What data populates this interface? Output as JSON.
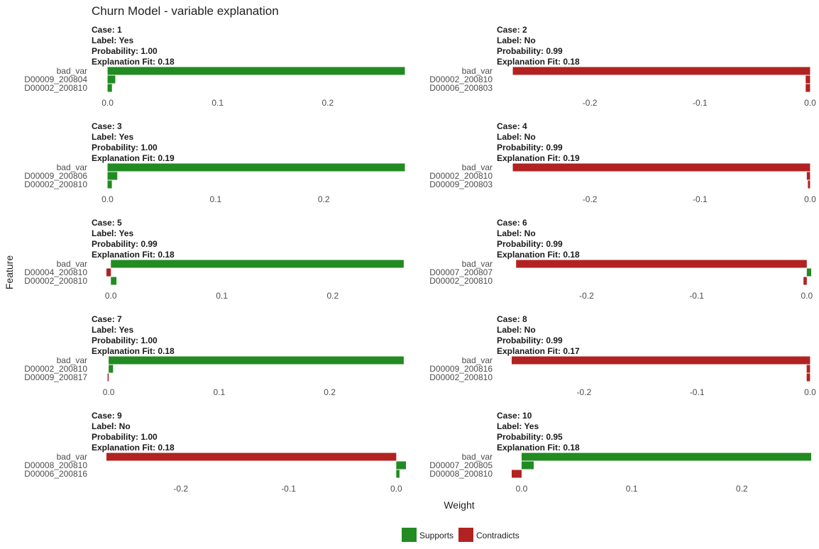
{
  "title": "Churn Model - variable explanation",
  "colors": {
    "supports": "#228b22",
    "contradicts": "#b22222"
  },
  "chart_data": {
    "type": "bar",
    "orientation": "horizontal",
    "title": "Churn Model - variable explanation",
    "xlabel": "Weight",
    "ylabel": "Feature",
    "grid": false,
    "legend": {
      "placement": "bottom",
      "entries": [
        {
          "name": "Supports",
          "color": "#228b22"
        },
        {
          "name": "Contradicts",
          "color": "#b22222"
        }
      ]
    },
    "panels": [
      {
        "case": "1",
        "label": "Yes",
        "probability": "1.00",
        "fit": "0.18",
        "xlim": [
          -0.001,
          0.271
        ],
        "ticks": [
          0.0,
          0.1,
          0.2
        ],
        "tick_labels": [
          "0.0",
          "0.1",
          "0.2"
        ],
        "features": [
          {
            "name": "bad_var",
            "weight": 0.27
          },
          {
            "name": "D00009_200804",
            "weight": 0.007
          },
          {
            "name": "D00002_200810",
            "weight": 0.004
          }
        ]
      },
      {
        "case": "2",
        "label": "No",
        "probability": "0.99",
        "fit": "0.18",
        "xlim": [
          -0.271,
          0.001
        ],
        "ticks": [
          -0.2,
          -0.1,
          0.0
        ],
        "tick_labels": [
          "-0.2",
          "-0.1",
          "0.0"
        ],
        "features": [
          {
            "name": "bad_var",
            "weight": -0.27
          },
          {
            "name": "D00002_200810",
            "weight": -0.004
          },
          {
            "name": "D00006_200803",
            "weight": -0.004
          }
        ]
      },
      {
        "case": "3",
        "label": "Yes",
        "probability": "1.00",
        "fit": "0.19",
        "xlim": [
          -0.001,
          0.276
        ],
        "ticks": [
          0.0,
          0.1,
          0.2
        ],
        "tick_labels": [
          "0.0",
          "0.1",
          "0.2"
        ],
        "features": [
          {
            "name": "bad_var",
            "weight": 0.275
          },
          {
            "name": "D00009_200806",
            "weight": 0.009
          },
          {
            "name": "D00002_200810",
            "weight": 0.004
          }
        ]
      },
      {
        "case": "4",
        "label": "No",
        "probability": "0.99",
        "fit": "0.19",
        "xlim": [
          -0.271,
          0.001
        ],
        "ticks": [
          -0.2,
          -0.1,
          0.0
        ],
        "tick_labels": [
          "-0.2",
          "-0.1",
          "0.0"
        ],
        "features": [
          {
            "name": "bad_var",
            "weight": -0.27
          },
          {
            "name": "D00002_200810",
            "weight": -0.003
          },
          {
            "name": "D00009_200803",
            "weight": -0.002
          }
        ]
      },
      {
        "case": "5",
        "label": "Yes",
        "probability": "0.99",
        "fit": "0.18",
        "xlim": [
          -0.004,
          0.266
        ],
        "ticks": [
          0.0,
          0.1,
          0.2
        ],
        "tick_labels": [
          "0.0",
          "0.1",
          "0.2"
        ],
        "features": [
          {
            "name": "bad_var",
            "weight": 0.264
          },
          {
            "name": "D00004_200810",
            "weight": -0.004
          },
          {
            "name": "D00002_200810",
            "weight": 0.005
          }
        ]
      },
      {
        "case": "6",
        "label": "No",
        "probability": "0.99",
        "fit": "0.18",
        "xlim": [
          -0.268,
          0.004
        ],
        "ticks": [
          -0.2,
          -0.1,
          0.0
        ],
        "tick_labels": [
          "-0.2",
          "-0.1",
          "0.0"
        ],
        "features": [
          {
            "name": "bad_var",
            "weight": -0.264
          },
          {
            "name": "D00007_200807",
            "weight": 0.004
          },
          {
            "name": "D00002_200810",
            "weight": -0.003
          }
        ]
      },
      {
        "case": "7",
        "label": "Yes",
        "probability": "1.00",
        "fit": "0.18",
        "xlim": [
          -0.002,
          0.269
        ],
        "ticks": [
          0.0,
          0.1,
          0.2
        ],
        "tick_labels": [
          "0.0",
          "0.1",
          "0.2"
        ],
        "features": [
          {
            "name": "bad_var",
            "weight": 0.267
          },
          {
            "name": "D00002_200810",
            "weight": 0.004
          },
          {
            "name": "D00009_200817",
            "weight": -0.001
          }
        ]
      },
      {
        "case": "8",
        "label": "No",
        "probability": "0.99",
        "fit": "0.17",
        "xlim": [
          -0.264,
          0.001
        ],
        "ticks": [
          -0.2,
          -0.1,
          0.0
        ],
        "tick_labels": [
          "-0.2",
          "-0.1",
          "0.0"
        ],
        "features": [
          {
            "name": "bad_var",
            "weight": -0.264
          },
          {
            "name": "D00009_200816",
            "weight": -0.003
          },
          {
            "name": "D00002_200810",
            "weight": -0.003
          }
        ]
      },
      {
        "case": "9",
        "label": "No",
        "probability": "1.00",
        "fit": "0.18",
        "xlim": [
          -0.269,
          0.009
        ],
        "ticks": [
          -0.2,
          -0.1,
          0.0
        ],
        "tick_labels": [
          "-0.2",
          "-0.1",
          "0.0"
        ],
        "features": [
          {
            "name": "bad_var",
            "weight": -0.269
          },
          {
            "name": "D00008_200810",
            "weight": 0.009
          },
          {
            "name": "D00006_200816",
            "weight": 0.003
          }
        ]
      },
      {
        "case": "10",
        "label": "Yes",
        "probability": "0.95",
        "fit": "0.18",
        "xlim": [
          -0.009,
          0.263
        ],
        "ticks": [
          0.0,
          0.1,
          0.2
        ],
        "tick_labels": [
          "0.0",
          "0.1",
          "0.2"
        ],
        "features": [
          {
            "name": "bad_var",
            "weight": 0.263
          },
          {
            "name": "D00007_200805",
            "weight": 0.011
          },
          {
            "name": "D00008_200810",
            "weight": -0.009
          }
        ]
      }
    ]
  }
}
